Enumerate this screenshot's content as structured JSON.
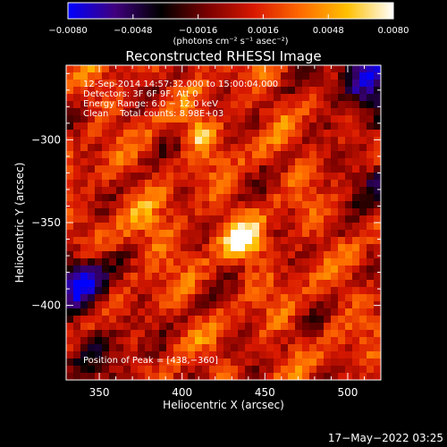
{
  "chart_data": {
    "type": "heatmap",
    "title": "Reconstructed RHESSI Image",
    "xlabel": "Heliocentric X (arcsec)",
    "ylabel": "Heliocentric Y (arcsec)",
    "xlim": [
      330,
      520
    ],
    "ylim": [
      -445,
      -255
    ],
    "x_ticks": [
      {
        "value": 350,
        "label": "350"
      },
      {
        "value": 400,
        "label": "400"
      },
      {
        "value": 450,
        "label": "450"
      },
      {
        "value": 500,
        "label": "500"
      }
    ],
    "y_ticks": [
      {
        "value": -300,
        "label": "−300"
      },
      {
        "value": -350,
        "label": "−350"
      },
      {
        "value": -400,
        "label": "−400"
      }
    ],
    "colorbar": {
      "range": [
        -0.008,
        0.008
      ],
      "ticks": [
        {
          "value": -0.008,
          "label": "−0.0080"
        },
        {
          "value": -0.0048,
          "label": "−0.0048"
        },
        {
          "value": -0.0016,
          "label": "−0.0016"
        },
        {
          "value": 0.0016,
          "label": "0.0016"
        },
        {
          "value": 0.0048,
          "label": "0.0048"
        },
        {
          "value": 0.008,
          "label": "0.0080"
        }
      ],
      "units": "(photons cm⁻² s⁻¹ asec⁻²)",
      "colormap": [
        "#0000ff",
        "#40007f",
        "#000000",
        "#7a0000",
        "#d81800",
        "#ff6a00",
        "#ffc000",
        "#ffffff"
      ]
    },
    "annotations": [
      "12-Sep-2014 14:57:32.000 to 15:00:04.000",
      "Detectors: 3F 6F 9F, Att 0",
      "Energy Range: 6.0 − 12.0 keV",
      "Clean    Total counts: 8.98E+03"
    ],
    "peak_label": "Position of Peak = [438,−360]",
    "peak": {
      "x": 438,
      "y": -360
    },
    "grid": false
  },
  "footer": {
    "timestamp": "17−May−2022 03:25"
  }
}
